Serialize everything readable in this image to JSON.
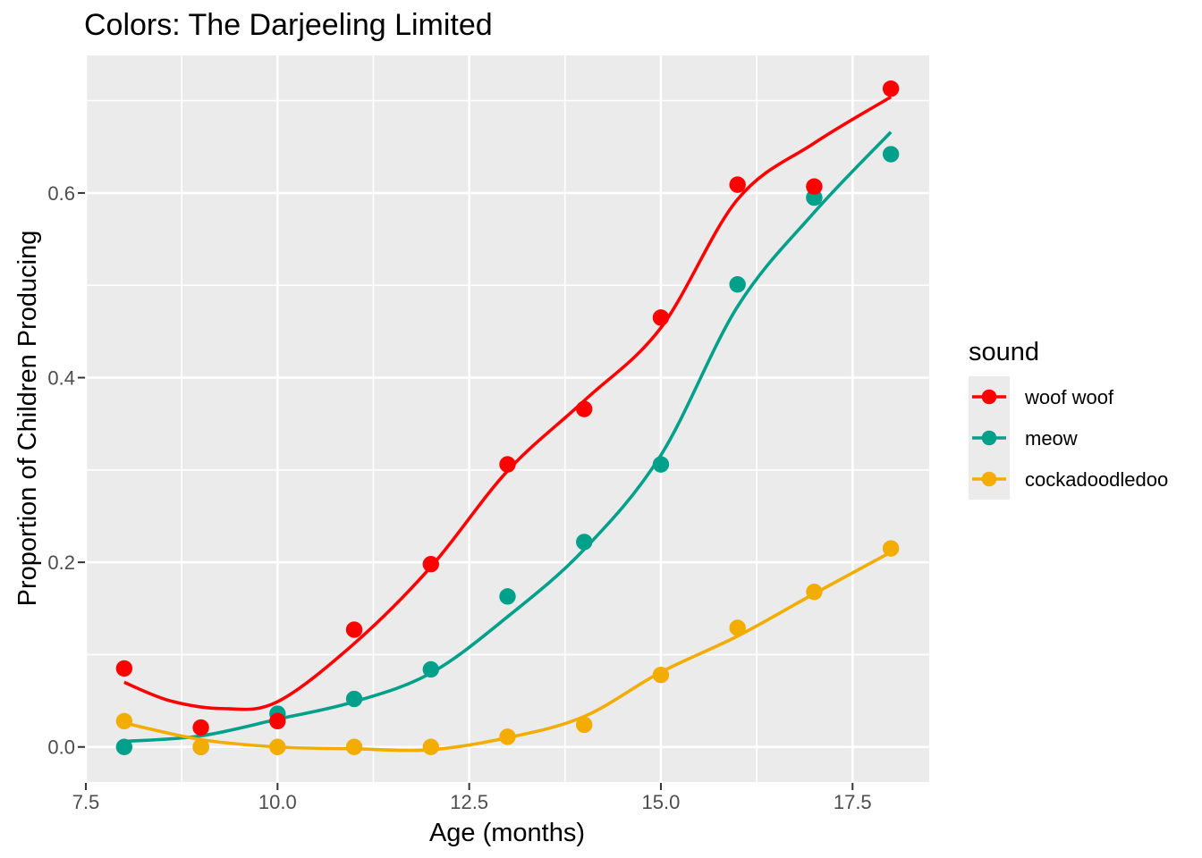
{
  "title": "Colors: The Darjeeling Limited",
  "axes": {
    "x": {
      "label": "Age (months)",
      "ticks": [
        "7.5",
        "10.0",
        "12.5",
        "15.0",
        "17.5"
      ],
      "tick_values": [
        7.5,
        10,
        12.5,
        15,
        17.5
      ]
    },
    "y": {
      "label": "Proportion of Children Producing",
      "ticks": [
        "0.0",
        "0.2",
        "0.4",
        "0.6"
      ],
      "tick_values": [
        0,
        0.2,
        0.4,
        0.6
      ]
    }
  },
  "legend": {
    "title": "sound",
    "position": "right",
    "items": [
      "woof woof",
      "meow",
      "cockadoodledoo"
    ]
  },
  "colors": {
    "woof_woof": "#FF0000",
    "meow": "#00A08A",
    "cockadoodledoo": "#F2AD00",
    "panel_background": "#EBEBEB",
    "gridline": "#FFFFFF",
    "tick_mark": "#333333",
    "tick_text": "#4D4D4D",
    "title_text": "#000000"
  },
  "chart_data": {
    "type": "scatter",
    "title": "Colors: The Darjeeling Limited",
    "xlabel": "Age (months)",
    "ylabel": "Proportion of Children Producing",
    "xlim": [
      7.5,
      18.5
    ],
    "ylim": [
      -0.038,
      0.749
    ],
    "grid": true,
    "legend_position": "right",
    "x": [
      8,
      9,
      10,
      11,
      12,
      13,
      14,
      15,
      16,
      17,
      18
    ],
    "x_major": [
      7.5,
      10,
      12.5,
      15,
      17.5
    ],
    "x_minor": [
      8.75,
      11.25,
      13.75,
      16.25
    ],
    "y_major": [
      0,
      0.2,
      0.4,
      0.6
    ],
    "y_minor": [
      0.1,
      0.3,
      0.5,
      0.7
    ],
    "draw_order": [
      "meow",
      "woof woof",
      "cockadoodledoo"
    ],
    "series": [
      {
        "name": "woof woof",
        "color": "#FF0000",
        "values": [
          0.085,
          0.021,
          0.028,
          0.127,
          0.198,
          0.306,
          0.366,
          0.465,
          0.609,
          0.607,
          0.713
        ],
        "smooth_x": [
          8,
          8.6,
          9.3,
          10,
          11,
          12,
          13,
          14,
          15,
          16,
          17,
          18
        ],
        "smooth_y": [
          0.07,
          0.05,
          0.0415,
          0.049,
          0.112,
          0.195,
          0.299,
          0.375,
          0.454,
          0.593,
          0.654,
          0.704
        ]
      },
      {
        "name": "meow",
        "color": "#00A08A",
        "values": [
          0.0,
          0.0,
          0.036,
          0.052,
          0.084,
          0.163,
          0.222,
          0.306,
          0.501,
          0.595,
          0.642
        ],
        "smooth_x": [
          8,
          9,
          10,
          11,
          12,
          13,
          14,
          15,
          16,
          17,
          18
        ],
        "smooth_y": [
          0.006,
          0.012,
          0.03,
          0.049,
          0.08,
          0.141,
          0.214,
          0.316,
          0.477,
          0.579,
          0.666
        ]
      },
      {
        "name": "cockadoodledoo",
        "color": "#F2AD00",
        "values": [
          0.028,
          0.0,
          0.0,
          0.0,
          0.0,
          0.011,
          0.024,
          0.078,
          0.129,
          0.168,
          0.215
        ],
        "smooth_x": [
          8,
          9,
          10,
          11,
          12,
          13,
          14,
          15,
          16,
          17,
          18
        ],
        "smooth_y": [
          0.026,
          0.008,
          0.0,
          -0.002,
          -0.003,
          0.01,
          0.033,
          0.081,
          0.12,
          0.166,
          0.211
        ]
      }
    ]
  }
}
